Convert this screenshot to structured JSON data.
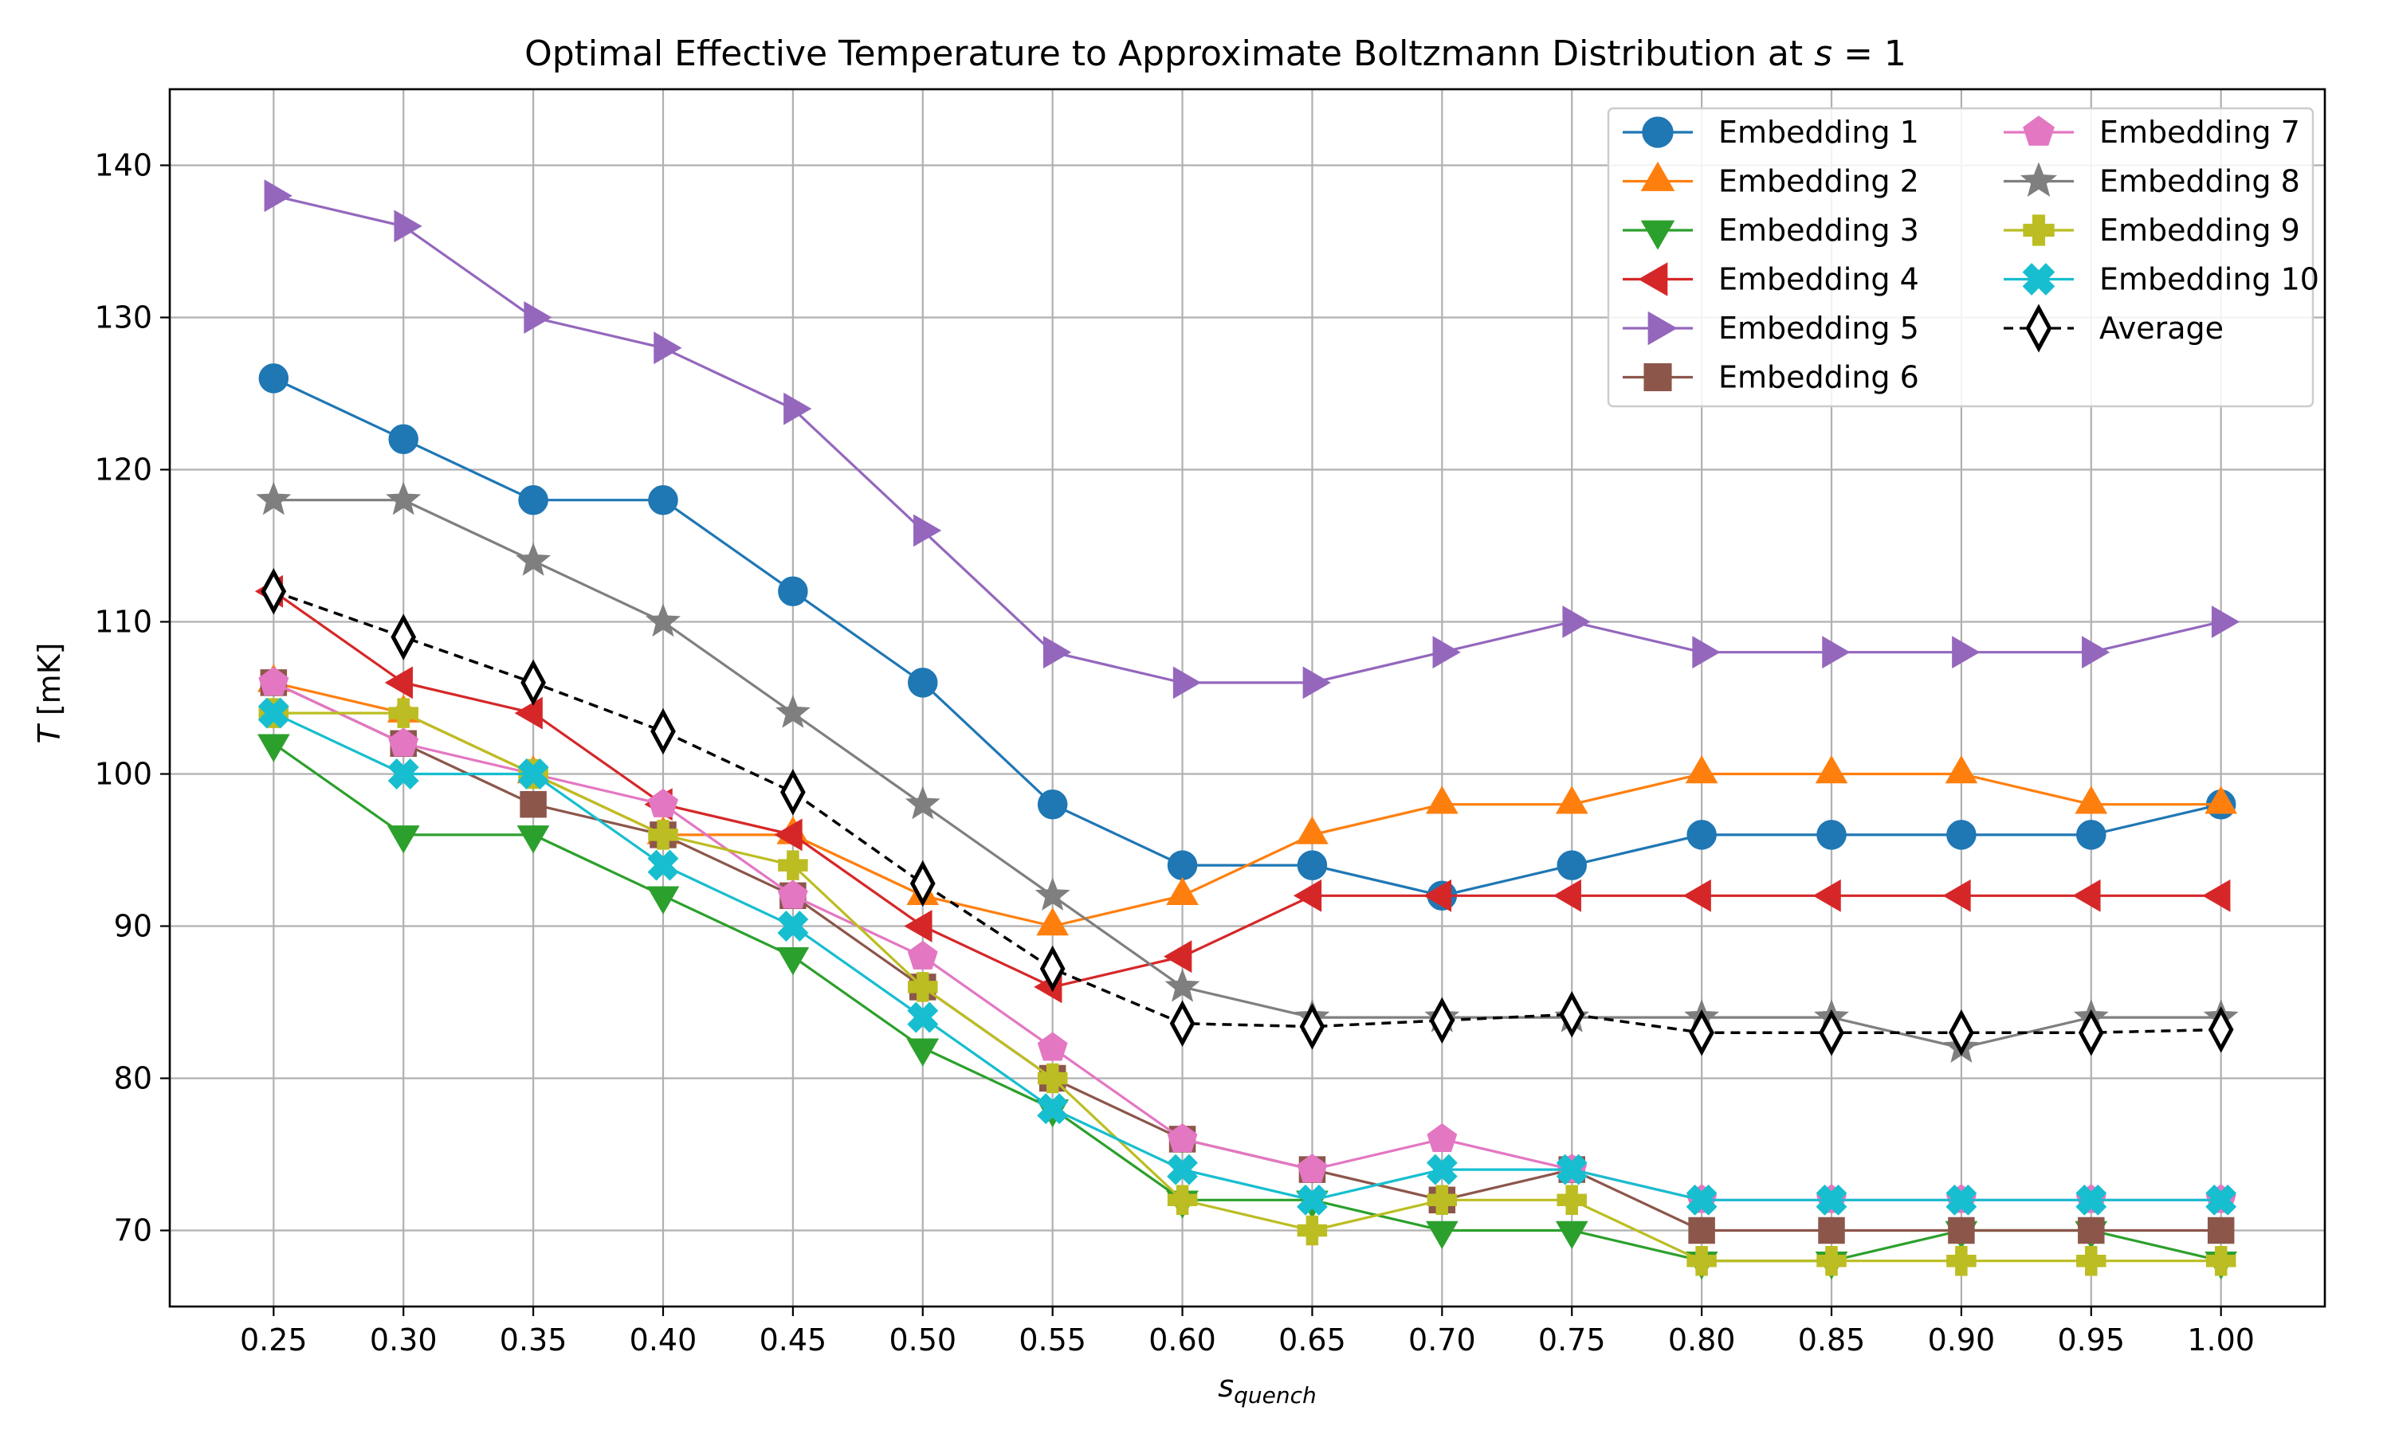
{
  "chart_data": {
    "type": "line",
    "title_prefix": "Optimal Effective Temperature to Approximate Boltzmann Distribution at",
    "title_math": "s = 1",
    "xlabel_main": "s",
    "xlabel_sub": "quench",
    "ylabel_italic": "T",
    "ylabel_unit": "[mK]",
    "xlim": [
      0.21,
      1.04
    ],
    "ylim": [
      65,
      145
    ],
    "x": [
      0.25,
      0.3,
      0.35,
      0.4,
      0.45,
      0.5,
      0.55,
      0.6,
      0.65,
      0.7,
      0.75,
      0.8,
      0.85,
      0.9,
      0.95,
      1.0
    ],
    "x_tick_labels": [
      "0.25",
      "0.30",
      "0.35",
      "0.40",
      "0.45",
      "0.50",
      "0.55",
      "0.60",
      "0.65",
      "0.70",
      "0.75",
      "0.80",
      "0.85",
      "0.90",
      "0.95",
      "1.00"
    ],
    "y_ticks": [
      70,
      80,
      90,
      100,
      110,
      120,
      130,
      140
    ],
    "y_tick_labels": [
      "70",
      "80",
      "90",
      "100",
      "110",
      "120",
      "130",
      "140"
    ],
    "grid": true,
    "legend_position": "top-right",
    "legend_columns": 2,
    "series": [
      {
        "name": "Embedding 1",
        "color": "#1f77b4",
        "marker": "circle",
        "dashed": false,
        "values": [
          126,
          122,
          118,
          118,
          112,
          106,
          98,
          94,
          94,
          92,
          94,
          96,
          96,
          96,
          96,
          98
        ]
      },
      {
        "name": "Embedding 2",
        "color": "#ff7f0e",
        "marker": "triangle-up",
        "dashed": false,
        "values": [
          106,
          104,
          100,
          96,
          96,
          92,
          90,
          92,
          96,
          98,
          98,
          100,
          100,
          100,
          98,
          98
        ]
      },
      {
        "name": "Embedding 3",
        "color": "#2ca02c",
        "marker": "triangle-down",
        "dashed": false,
        "values": [
          102,
          96,
          96,
          92,
          88,
          82,
          78,
          72,
          72,
          70,
          70,
          68,
          68,
          70,
          70,
          68
        ]
      },
      {
        "name": "Embedding 4",
        "color": "#d62728",
        "marker": "triangle-left",
        "dashed": false,
        "values": [
          112,
          106,
          104,
          98,
          96,
          90,
          86,
          88,
          92,
          92,
          92,
          92,
          92,
          92,
          92,
          92
        ]
      },
      {
        "name": "Embedding 5",
        "color": "#9467bd",
        "marker": "triangle-right",
        "dashed": false,
        "values": [
          138,
          136,
          130,
          128,
          124,
          116,
          108,
          106,
          106,
          108,
          110,
          108,
          108,
          108,
          108,
          110
        ]
      },
      {
        "name": "Embedding 6",
        "color": "#8c564b",
        "marker": "square",
        "dashed": false,
        "values": [
          106,
          102,
          98,
          96,
          92,
          86,
          80,
          76,
          74,
          72,
          74,
          70,
          70,
          70,
          70,
          70
        ]
      },
      {
        "name": "Embedding 7",
        "color": "#e377c2",
        "marker": "pentagon",
        "dashed": false,
        "values": [
          106,
          102,
          100,
          98,
          92,
          88,
          82,
          76,
          74,
          76,
          74,
          72,
          72,
          72,
          72,
          72
        ]
      },
      {
        "name": "Embedding 8",
        "color": "#7f7f7f",
        "marker": "star",
        "dashed": false,
        "values": [
          118,
          118,
          114,
          110,
          104,
          98,
          92,
          86,
          84,
          84,
          84,
          84,
          84,
          82,
          84,
          84
        ]
      },
      {
        "name": "Embedding 9",
        "color": "#bcbd22",
        "marker": "plus",
        "dashed": false,
        "values": [
          104,
          104,
          100,
          96,
          94,
          86,
          80,
          72,
          70,
          72,
          72,
          68,
          68,
          68,
          68,
          68
        ]
      },
      {
        "name": "Embedding 10",
        "color": "#17becf",
        "marker": "x",
        "dashed": false,
        "values": [
          104,
          100,
          100,
          94,
          90,
          84,
          78,
          74,
          72,
          74,
          74,
          72,
          72,
          72,
          72,
          72
        ]
      },
      {
        "name": "Average",
        "color": "#000000",
        "marker": "diamond",
        "dashed": true,
        "values": [
          112.0,
          109.0,
          106.0,
          102.8,
          98.8,
          92.8,
          87.2,
          83.6,
          83.4,
          83.8,
          84.2,
          83.0,
          83.0,
          83.0,
          83.0,
          83.2
        ]
      }
    ]
  }
}
